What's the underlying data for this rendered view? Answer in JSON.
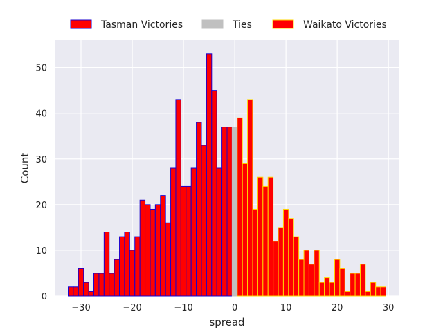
{
  "chart_data": {
    "type": "bar",
    "xlabel": "spread",
    "ylabel": "Count",
    "xlim": [
      -35,
      32
    ],
    "ylim": [
      0,
      56
    ],
    "xticks": [
      -30,
      -20,
      -10,
      0,
      10,
      20,
      30
    ],
    "yticks": [
      0,
      10,
      20,
      30,
      40,
      50
    ],
    "grid": true,
    "legend_placement": "top-center",
    "bin_width": 1,
    "series": [
      {
        "name": "Tasman Victories",
        "fill": "#ff0000",
        "edge": "#1a00cc",
        "x": [
          -32,
          -31,
          -30,
          -29,
          -28,
          -27,
          -26,
          -25,
          -24,
          -23,
          -22,
          -21,
          -20,
          -19,
          -18,
          -17,
          -16,
          -15,
          -14,
          -13,
          -12,
          -11,
          -10,
          -9,
          -8,
          -7,
          -6,
          -5,
          -4,
          -3,
          -2,
          -1
        ],
        "values": [
          2,
          2,
          6,
          3,
          1,
          5,
          5,
          14,
          5,
          8,
          13,
          14,
          10,
          13,
          21,
          20,
          19,
          20,
          22,
          16,
          28,
          43,
          24,
          24,
          28,
          38,
          33,
          53,
          45,
          28,
          37,
          37
        ]
      },
      {
        "name": "Ties",
        "fill": "#c0c0c0",
        "edge": "#c0c0c0",
        "x": [
          0
        ],
        "values": [
          37
        ]
      },
      {
        "name": "Waikato Victories",
        "fill": "#ff0000",
        "edge": "#ffd700",
        "x": [
          1,
          2,
          3,
          4,
          5,
          6,
          7,
          8,
          9,
          10,
          11,
          12,
          13,
          14,
          15,
          16,
          17,
          18,
          19,
          20,
          21,
          22,
          23,
          24,
          25,
          26,
          27,
          28,
          29
        ],
        "values": [
          39,
          29,
          43,
          19,
          26,
          24,
          26,
          12,
          15,
          19,
          17,
          13,
          8,
          10,
          7,
          10,
          3,
          4,
          3,
          8,
          6,
          1,
          5,
          5,
          7,
          1,
          3,
          2,
          2
        ]
      }
    ]
  }
}
